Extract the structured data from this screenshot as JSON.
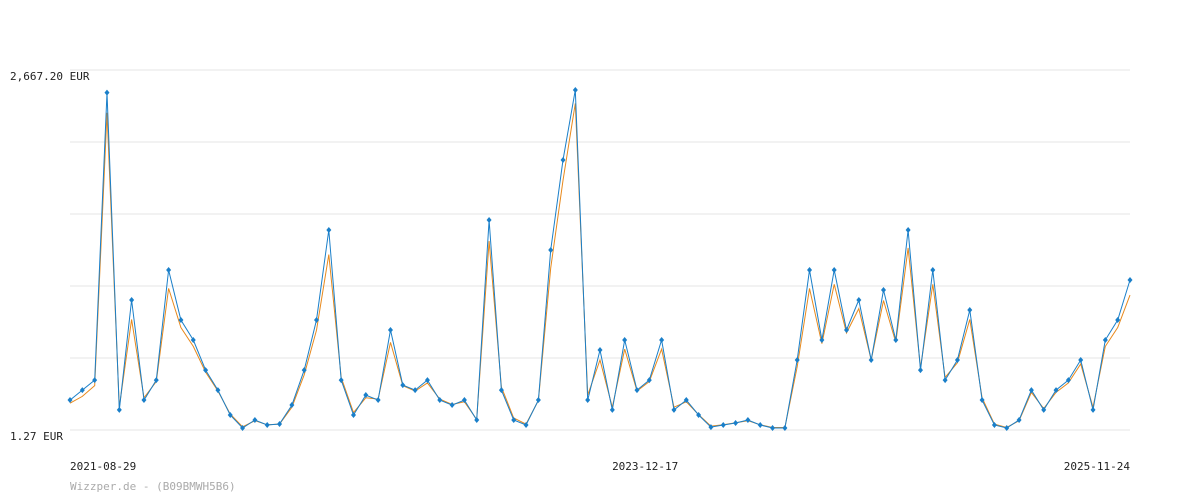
{
  "chart_data": {
    "type": "line",
    "x": [
      "2021-08-29",
      "2021-09-16",
      "2021-10-04",
      "2021-10-22",
      "2021-11-09",
      "2021-11-27",
      "2021-12-15",
      "2022-01-02",
      "2022-01-20",
      "2022-02-07",
      "2022-02-25",
      "2022-03-15",
      "2022-04-02",
      "2022-04-20",
      "2022-05-08",
      "2022-05-26",
      "2022-06-13",
      "2022-07-01",
      "2022-07-19",
      "2022-08-06",
      "2022-08-24",
      "2022-09-11",
      "2022-09-29",
      "2022-10-17",
      "2022-11-04",
      "2022-11-22",
      "2022-12-10",
      "2022-12-28",
      "2023-01-15",
      "2023-02-02",
      "2023-02-20",
      "2023-03-10",
      "2023-03-28",
      "2023-04-15",
      "2023-05-03",
      "2023-05-21",
      "2023-06-08",
      "2023-06-26",
      "2023-07-14",
      "2023-08-01",
      "2023-08-19",
      "2023-09-06",
      "2023-09-24",
      "2023-10-12",
      "2023-10-30",
      "2023-11-17",
      "2023-12-05",
      "2023-12-23",
      "2024-01-10",
      "2024-01-28",
      "2024-02-15",
      "2024-03-04",
      "2024-03-22",
      "2024-04-09",
      "2024-04-27",
      "2024-05-15",
      "2024-06-02",
      "2024-06-20",
      "2024-07-08",
      "2024-07-26",
      "2024-08-13",
      "2024-08-31",
      "2024-09-18",
      "2024-10-06",
      "2024-10-24",
      "2024-11-11",
      "2024-11-29",
      "2024-12-17",
      "2025-01-04",
      "2025-01-22",
      "2025-02-09",
      "2025-02-27",
      "2025-03-17",
      "2025-04-04",
      "2025-04-22",
      "2025-05-10",
      "2025-05-28",
      "2025-06-15",
      "2025-07-03",
      "2025-07-21",
      "2025-08-08",
      "2025-08-26",
      "2025-09-13",
      "2025-10-01",
      "2025-10-19",
      "2025-11-06",
      "2025-11-24"
    ],
    "series": [
      {
        "color": "#1a7fc9",
        "values": [
          223,
          297,
          371,
          2500,
          150,
          964,
          223,
          371,
          1186,
          816,
          668,
          445,
          297,
          112,
          16,
          75,
          38,
          46,
          186,
          445,
          816,
          1482,
          371,
          112,
          260,
          223,
          742,
          334,
          297,
          371,
          223,
          186,
          223,
          75,
          1556,
          297,
          75,
          38,
          223,
          1334,
          2001,
          2519,
          223,
          594,
          150,
          668,
          297,
          371,
          668,
          150,
          223,
          112,
          23,
          38,
          53,
          75,
          38,
          16,
          16,
          520,
          1186,
          668,
          1186,
          742,
          964,
          520,
          1038,
          668,
          1482,
          445,
          1186,
          371,
          520,
          890,
          223,
          38,
          16,
          75,
          297,
          150,
          297,
          371,
          520,
          150,
          668,
          816,
          1112
        ]
      },
      {
        "color": "#e8891c",
        "values": [
          200,
          250,
          330,
          2350,
          170,
          820,
          240,
          360,
          1050,
          760,
          620,
          430,
          290,
          120,
          25,
          70,
          40,
          45,
          170,
          410,
          740,
          1300,
          390,
          130,
          240,
          230,
          650,
          330,
          290,
          350,
          230,
          190,
          210,
          80,
          1400,
          320,
          90,
          45,
          220,
          1200,
          1850,
          2420,
          260,
          520,
          170,
          600,
          290,
          360,
          600,
          170,
          210,
          115,
          30,
          40,
          55,
          70,
          40,
          20,
          20,
          470,
          1050,
          640,
          1080,
          720,
          900,
          520,
          960,
          650,
          1350,
          460,
          1080,
          390,
          500,
          820,
          240,
          45,
          20,
          70,
          280,
          160,
          280,
          350,
          490,
          170,
          620,
          760,
          1000
        ]
      }
    ],
    "xlim": [
      "2021-08-29",
      "2025-11-24"
    ],
    "xticks": [
      "2021-08-29",
      "2023-12-17",
      "2025-11-24"
    ],
    "ylim": [
      1.27,
      2667.2
    ],
    "yticks": [
      {
        "value": 1.27,
        "label": "1.27 EUR"
      },
      {
        "value": 2667.2,
        "label": "2,667.20 EUR"
      }
    ],
    "gridlines": [
      534.456,
      1067.642,
      1600.828,
      2134.014
    ],
    "grid": true,
    "footer": "Wizzper.de - (B09BMWH5B6)"
  }
}
